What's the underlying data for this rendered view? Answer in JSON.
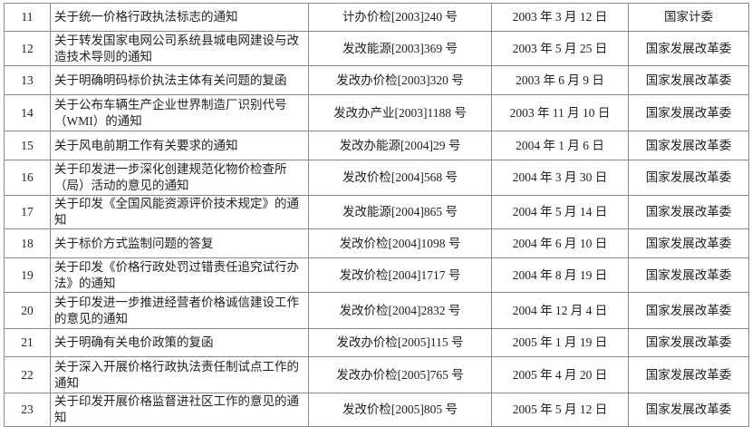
{
  "rows": [
    {
      "no": "11",
      "title": "关于统一价格行政执法标志的通知",
      "doc": "计办价检[2003]240 号",
      "date": "2003 年 3 月 12 日",
      "agency": "国家计委"
    },
    {
      "no": "12",
      "title": "关于转发国家电网公司系统县城电网建设与改造技术导则的通知",
      "doc": "发改能源[2003]369 号",
      "date": "2003 年 5 月 25 日",
      "agency": "国家发展改革委"
    },
    {
      "no": "13",
      "title": "关于明确明码标价执法主体有关问题的复函",
      "doc": "发改办价检[2003]320 号",
      "date": "2003 年 6 月 9 日",
      "agency": "国家发展改革委"
    },
    {
      "no": "14",
      "title": "关于公布车辆生产企业世界制造厂识别代号（WMI）的通知",
      "doc": "发改办产业[2003]1188 号",
      "date": "2003 年 11 月 10 日",
      "agency": "国家发展改革委"
    },
    {
      "no": "15",
      "title": "关于风电前期工作有关要求的通知",
      "doc": "发改办能源[2004]29 号",
      "date": "2004 年 1 月 6 日",
      "agency": "国家发展改革委"
    },
    {
      "no": "16",
      "title": "关于印发进一步深化创建规范化物价检查所（局）活动的意见的通知",
      "doc": "发改价检[2004]568 号",
      "date": "2004 年 3 月 30 日",
      "agency": "国家发展改革委"
    },
    {
      "no": "17",
      "title": "关于印发《全国风能资源评价技术规定》的通知",
      "doc": "发改能源[2004]865 号",
      "date": "2004 年 5 月 14 日",
      "agency": "国家发展改革委"
    },
    {
      "no": "18",
      "title": "关于标价方式监制问题的答复",
      "doc": "发改价检[2004]1098 号",
      "date": "2004 年 6 月 10 日",
      "agency": "国家发展改革委"
    },
    {
      "no": "19",
      "title": "关于印发《价格行政处罚过错责任追究试行办法》的通知",
      "doc": "发改价检[2004]1717 号",
      "date": "2004 年 8 月 19 日",
      "agency": "国家发展改革委"
    },
    {
      "no": "20",
      "title": "关于印发进一步推进经营者价格诚信建设工作的意见的通知",
      "doc": "发改价检[2004]2832 号",
      "date": "2004 年 12 月 4 日",
      "agency": "国家发展改革委"
    },
    {
      "no": "21",
      "title": "关于明确有关电价政策的复函",
      "doc": "发改办价检[2005]115 号",
      "date": "2005 年 1 月 19 日",
      "agency": "国家发展改革委"
    },
    {
      "no": "22",
      "title": "关于深入开展价格行政执法责任制试点工作的通知",
      "doc": "发改办价检[2005]765 号",
      "date": "2005 年 4 月 20 日",
      "agency": "国家发展改革委"
    },
    {
      "no": "23",
      "title": "关于印发开展价格监督进社区工作的意见的通知",
      "doc": "发改价检[2005]805 号",
      "date": "2005 年 5 月 12 日",
      "agency": "国家发展改革委"
    }
  ]
}
